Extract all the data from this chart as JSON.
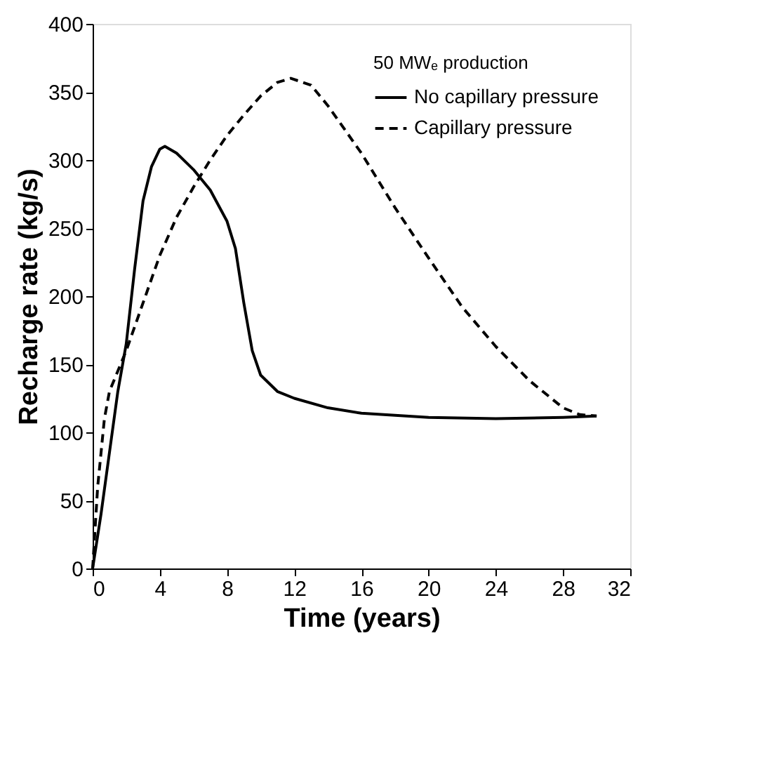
{
  "chart_data": {
    "type": "line",
    "xlabel": "Time (years)",
    "ylabel": "Recharge rate (kg/s)",
    "legend_title": "50 MWₑ production",
    "xlim": [
      0,
      32
    ],
    "xticks": [
      0,
      4,
      8,
      12,
      16,
      20,
      24,
      28,
      32
    ],
    "ylim": [
      0,
      400
    ],
    "yticks": [
      0,
      50,
      100,
      150,
      200,
      250,
      300,
      350,
      400
    ],
    "grid": false,
    "legend": "top right",
    "marker": "none",
    "series": [
      {
        "name": "No capillary pressure",
        "color": "#000000",
        "line_style": "solid",
        "x": [
          0,
          0.5,
          1,
          1.5,
          2,
          2.5,
          3,
          3.5,
          4,
          4.3,
          5,
          6,
          7,
          8,
          8.5,
          9,
          9.5,
          10,
          11,
          12,
          14,
          16,
          20,
          24,
          28,
          30
        ],
        "values": [
          0,
          40,
          85,
          130,
          165,
          220,
          270,
          295,
          308,
          310,
          305,
          293,
          278,
          255,
          235,
          195,
          160,
          142,
          130,
          125,
          118,
          114,
          111,
          110,
          111,
          112
        ]
      },
      {
        "name": "Capillary pressure",
        "color": "#000000",
        "line_style": "dashed",
        "x": [
          0,
          0.3,
          0.7,
          1,
          2,
          3,
          4,
          5,
          6,
          7,
          8,
          9,
          10,
          11,
          11.8,
          13,
          14,
          16,
          18,
          20,
          22,
          24,
          26,
          28,
          29,
          30
        ],
        "values": [
          0,
          60,
          110,
          130,
          160,
          195,
          230,
          258,
          280,
          300,
          318,
          333,
          347,
          357,
          360,
          355,
          340,
          305,
          265,
          228,
          192,
          163,
          138,
          118,
          113,
          112
        ]
      }
    ]
  }
}
